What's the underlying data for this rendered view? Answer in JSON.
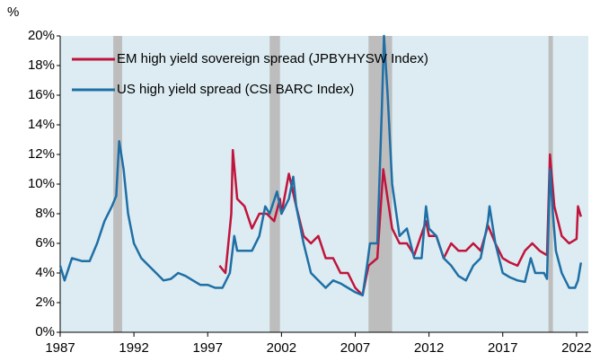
{
  "chart_data": {
    "type": "line",
    "y_axis_label": "%",
    "xlim": [
      1987,
      2022.8
    ],
    "xticks": [
      1987,
      1992,
      1997,
      2002,
      2007,
      2012,
      2017,
      2022
    ],
    "ylim": [
      0,
      20
    ],
    "yticks": [
      {
        "value": 0,
        "label": "0%"
      },
      {
        "value": 2,
        "label": "2%"
      },
      {
        "value": 4,
        "label": "4%"
      },
      {
        "value": 6,
        "label": "6%"
      },
      {
        "value": 8,
        "label": "8%"
      },
      {
        "value": 10,
        "label": "10%"
      },
      {
        "value": 12,
        "label": "12%"
      },
      {
        "value": 14,
        "label": "14%"
      },
      {
        "value": 16,
        "label": "16%"
      },
      {
        "value": 18,
        "label": "18%"
      },
      {
        "value": 20,
        "label": "20%"
      }
    ],
    "legend": "top-left",
    "shaded_periods": [
      {
        "start": 1990.6,
        "end": 1991.2
      },
      {
        "start": 2001.2,
        "end": 2001.9
      },
      {
        "start": 2007.9,
        "end": 2009.5
      },
      {
        "start": 2020.1,
        "end": 2020.4
      }
    ],
    "shade_color": "#bdbdbd",
    "series": [
      {
        "name": "EM high yield sovereign spread (JPBYHYSW Index)",
        "color": "#c0143c",
        "x": [
          1997.8,
          1998.2,
          1998.6,
          1998.7,
          1999,
          1999.5,
          2000,
          2000.5,
          2001,
          2001.5,
          2001.9,
          2002,
          2002.5,
          2003,
          2003.5,
          2004,
          2004.5,
          2005,
          2005.5,
          2006,
          2006.5,
          2007,
          2007.5,
          2007.9,
          2008.5,
          2008.9,
          2009.2,
          2009.5,
          2010,
          2010.5,
          2011,
          2011.8,
          2012,
          2012.5,
          2013,
          2013.5,
          2014,
          2014.5,
          2015,
          2015.5,
          2016,
          2016.5,
          2017,
          2017.5,
          2018,
          2018.5,
          2019,
          2019.5,
          2020,
          2020.2,
          2020.5,
          2021,
          2021.5,
          2022,
          2022.1,
          2022.3
        ],
        "values": [
          4.5,
          4,
          8,
          12.3,
          9,
          8.5,
          7,
          8,
          8,
          7.5,
          9,
          8,
          10.7,
          8.5,
          6.5,
          6,
          6.5,
          5,
          5,
          4,
          4,
          3,
          2.5,
          4.5,
          5,
          11,
          9,
          7,
          6,
          6,
          5.2,
          7.5,
          6.5,
          6.5,
          5,
          6,
          5.5,
          5.5,
          6,
          5.5,
          7.2,
          6,
          5,
          4.7,
          4.5,
          5.5,
          6,
          5.5,
          5.2,
          12,
          8.5,
          6.5,
          6,
          6.3,
          8.5,
          7.8
        ]
      },
      {
        "name": "US high yield spread (CSI BARC Index)",
        "color": "#1f6fa5",
        "x": [
          1987,
          1987.3,
          1987.8,
          1988.5,
          1989,
          1989.5,
          1990,
          1990.5,
          1990.8,
          1991,
          1991.3,
          1991.6,
          1992,
          1992.5,
          1993,
          1993.5,
          1994,
          1994.5,
          1995,
          1995.5,
          1996,
          1996.5,
          1997,
          1997.5,
          1998,
          1998.5,
          1998.8,
          1999,
          1999.5,
          2000,
          2000.5,
          2000.9,
          2001.2,
          2001.7,
          2002,
          2002.5,
          2002.8,
          2003,
          2003.5,
          2004,
          2004.5,
          2005,
          2005.5,
          2006,
          2006.5,
          2007,
          2007.5,
          2007.8,
          2008,
          2008.5,
          2008.8,
          2008.95,
          2009.2,
          2009.5,
          2010,
          2010.5,
          2011,
          2011.5,
          2011.8,
          2012,
          2012.5,
          2013,
          2013.5,
          2014,
          2014.5,
          2015,
          2015.5,
          2016,
          2016.1,
          2016.5,
          2017,
          2017.5,
          2018,
          2018.5,
          2018.9,
          2019.2,
          2019.8,
          2020,
          2020.2,
          2020.4,
          2020.6,
          2021,
          2021.5,
          2021.9,
          2022.1,
          2022.3
        ],
        "values": [
          4.5,
          3.5,
          5,
          4.8,
          4.8,
          6,
          7.5,
          8.5,
          9.2,
          12.9,
          11,
          8,
          6,
          5,
          4.5,
          4,
          3.5,
          3.6,
          4,
          3.8,
          3.5,
          3.2,
          3.2,
          3,
          3,
          4,
          6.5,
          5.5,
          5.5,
          5.5,
          6.5,
          8.5,
          8,
          9.5,
          8,
          9,
          10.5,
          8.5,
          6,
          4,
          3.5,
          3,
          3.5,
          3.3,
          3,
          2.7,
          2.5,
          4.5,
          6,
          6,
          15,
          20,
          16,
          10,
          6.5,
          7,
          5,
          5,
          8.5,
          7,
          6.5,
          5,
          4.5,
          3.8,
          3.5,
          4.5,
          5,
          7.5,
          8.5,
          6,
          4,
          3.7,
          3.5,
          3.4,
          5,
          4,
          4,
          3.6,
          11,
          8,
          5.5,
          4,
          3,
          3,
          3.5,
          4.7
        ]
      }
    ]
  }
}
